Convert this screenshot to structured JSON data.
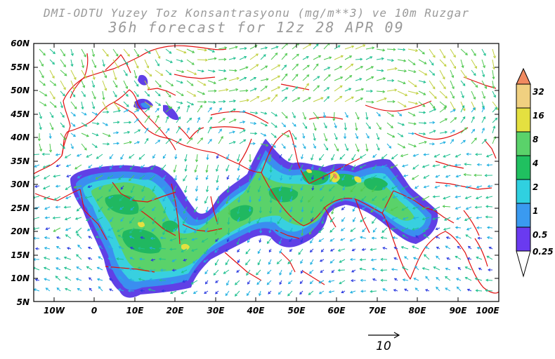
{
  "title": {
    "line1": "DMI-ODTU Yuzey Toz Konsantrasyonu (mg/m**3) ve 10m Ruzgar",
    "line2": "36h forecast for 12z 28 APR 09"
  },
  "axes": {
    "lat_labels": [
      "60N",
      "55N",
      "50N",
      "45N",
      "40N",
      "35N",
      "30N",
      "25N",
      "20N",
      "15N",
      "10N",
      "5N"
    ],
    "lon_labels": [
      "10W",
      "0",
      "10E",
      "20E",
      "30E",
      "40E",
      "50E",
      "60E",
      "70E",
      "80E",
      "90E",
      "100E"
    ],
    "lat_range": [
      5,
      60
    ],
    "lon_range": [
      -15,
      100
    ]
  },
  "colorbar": {
    "labels": [
      "32",
      "16",
      "8",
      "4",
      "2",
      "1",
      "0.5",
      "0.25"
    ],
    "colors": [
      "#f08a60",
      "#f0d080",
      "#e4e040",
      "#5ad26a",
      "#20c060",
      "#30d0e0",
      "#3a9af0",
      "#6a3af0",
      "#ffffff"
    ]
  },
  "reference_vector": {
    "label": "10"
  },
  "colors": {
    "coastline": "#e01010",
    "title": "#9a9a9a"
  }
}
